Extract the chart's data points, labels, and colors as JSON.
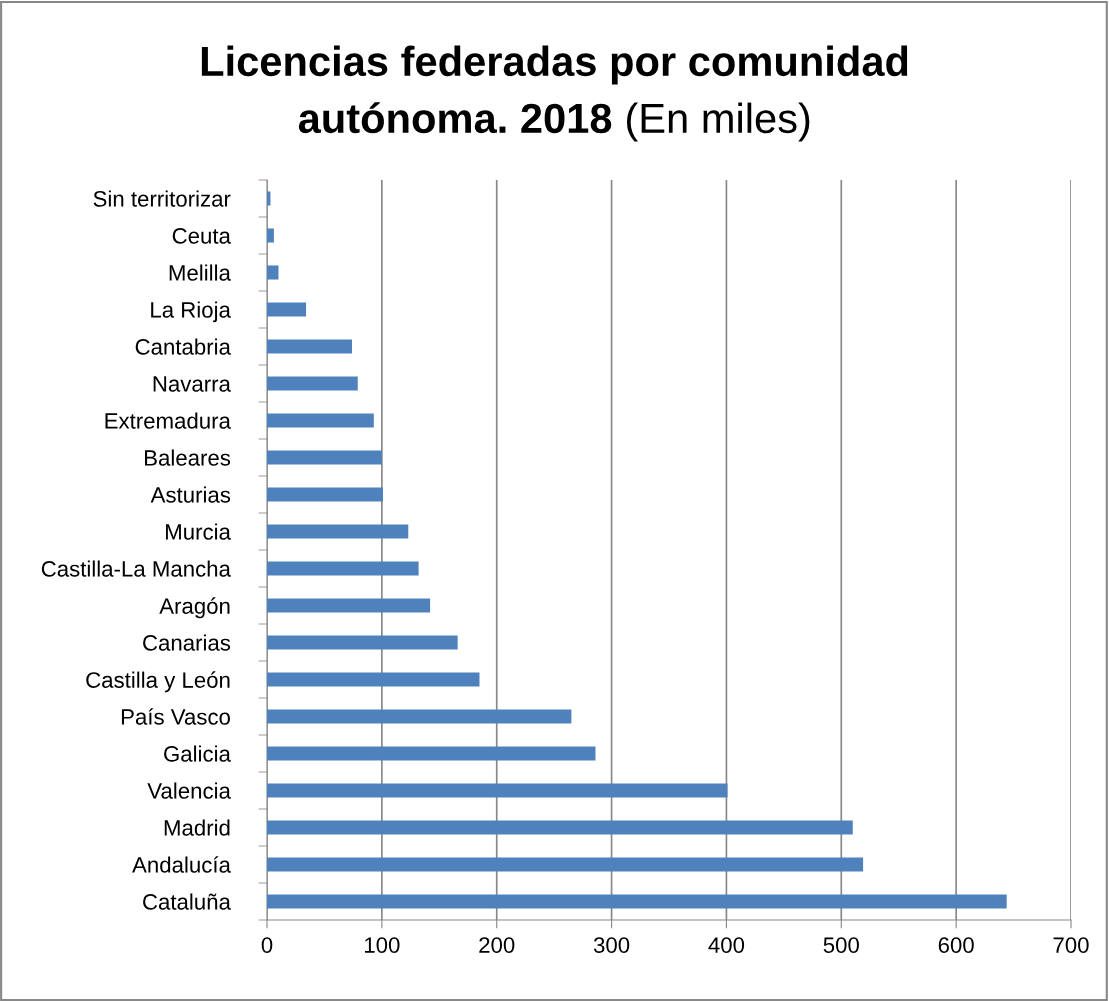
{
  "chart_data": {
    "type": "bar",
    "orientation": "horizontal",
    "title": "Licencias federadas por comunidad autónoma. 2018",
    "subtitle": "(En miles)",
    "categories": [
      "Sin territorizar",
      "Ceuta",
      "Melilla",
      "La Rioja",
      "Cantabria",
      "Navarra",
      "Extremadura",
      "Baleares",
      "Asturias",
      "Murcia",
      "Castilla-La Mancha",
      "Aragón",
      "Canarias",
      "Castilla y León",
      "País Vasco",
      "Galicia",
      "Valencia",
      "Madrid",
      "Andalucía",
      "Cataluña"
    ],
    "values": [
      3,
      6,
      10,
      34,
      74,
      79,
      93,
      100,
      101,
      123,
      132,
      142,
      166,
      185,
      265,
      286,
      401,
      510,
      519,
      644
    ],
    "color": "#4f81bd",
    "xlim": [
      0,
      700
    ],
    "xticks": [
      0,
      100,
      200,
      300,
      400,
      500,
      600,
      700
    ],
    "grid": "x",
    "legend": false
  }
}
